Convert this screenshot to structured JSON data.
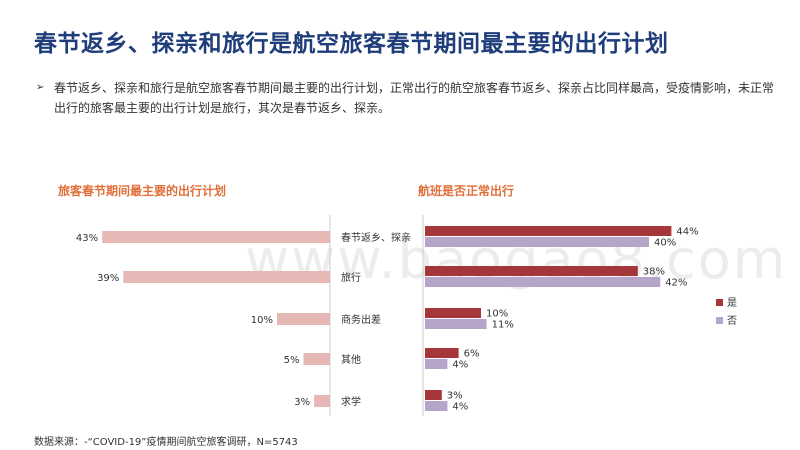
{
  "title": "春节返乡、探亲和旅行是航空旅客春节期间最主要的出行计划",
  "bullet_marker": "➢",
  "bullet": "春节返乡、探亲和旅行是航空旅客春节期间最主要的出行计划，正常出行的航空旅客春节返乡、探亲占比同样最高，受疫情影响，未正常出行的旅客最主要的出行计划是旅行，其次是春节返乡、探亲。",
  "watermark": "www.baogao8.com",
  "source": "数据来源：-“COVID-19”疫情期间航空旅客调研，N=5743",
  "colors": {
    "left_bar": "#e6b8b5",
    "yes": "#a5363a",
    "no": "#b7a4c9",
    "title": "#1f3d7a",
    "subtitle": "#e0703a"
  },
  "chart_data": [
    {
      "type": "bar",
      "orientation": "horizontal",
      "title": "旅客春节期间最主要的出行计划",
      "categories": [
        "春节返乡、探亲",
        "旅行",
        "商务出差",
        "其他",
        "求学"
      ],
      "values": [
        43,
        39,
        10,
        5,
        3
      ],
      "value_labels": [
        "43%",
        "39%",
        "10%",
        "5%",
        "3%"
      ],
      "direction": "right-to-left"
    },
    {
      "type": "bar",
      "orientation": "horizontal",
      "title": "航班是否正常出行",
      "categories": [
        "春节返乡、探亲",
        "旅行",
        "商务出差",
        "其他",
        "求学"
      ],
      "series": [
        {
          "name": "是",
          "values": [
            44,
            38,
            10,
            6,
            3
          ],
          "labels": [
            "44%",
            "38%",
            "10%",
            "6%",
            "3%"
          ]
        },
        {
          "name": "否",
          "values": [
            40,
            42,
            11,
            4,
            4
          ],
          "labels": [
            "40%",
            "42%",
            "11%",
            "4%",
            "4%"
          ]
        }
      ],
      "legend": "right"
    }
  ]
}
